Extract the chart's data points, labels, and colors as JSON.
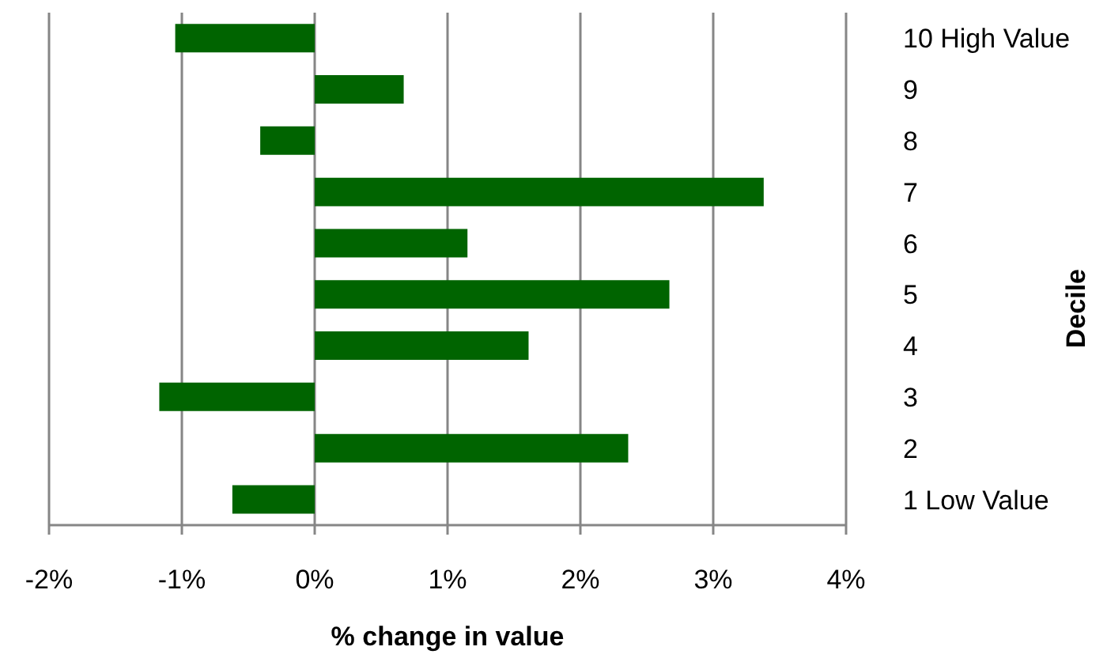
{
  "chart_data": {
    "type": "bar",
    "orientation": "horizontal",
    "xlabel": "% change in value",
    "ylabel": "Decile",
    "categories": [
      "10 High Value",
      "9",
      "8",
      "7",
      "6",
      "5",
      "4",
      "3",
      "2",
      "1 Low Value"
    ],
    "values": [
      -1.05,
      0.67,
      -0.41,
      3.38,
      1.15,
      2.67,
      1.61,
      -1.17,
      2.36,
      -0.62
    ],
    "color": "#006400",
    "xlim": [
      -2,
      4
    ],
    "xticks": [
      {
        "value": -2,
        "label": "-2%"
      },
      {
        "value": -1,
        "label": "-1%"
      },
      {
        "value": 0,
        "label": "0%"
      },
      {
        "value": 1,
        "label": "1%"
      },
      {
        "value": 2,
        "label": "2%"
      },
      {
        "value": 3,
        "label": "3%"
      },
      {
        "value": 4,
        "label": "4%"
      }
    ],
    "grid": "x"
  }
}
